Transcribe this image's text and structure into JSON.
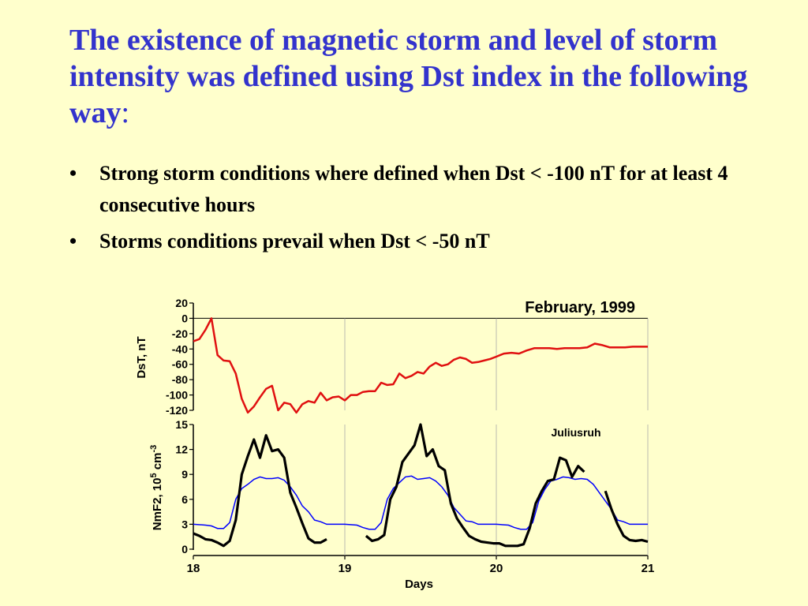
{
  "slide": {
    "title_main": "The existence of magnetic storm and level of storm intensity was defined using Dst index in the following way",
    "title_colon": ":",
    "bullets": [
      "Strong storm conditions where defined when Dst < -100 nT for at least 4 consecutive hours",
      "Storms conditions prevail when Dst < -50 nT"
    ],
    "bullet_glyph": "•"
  },
  "chart_data": [
    {
      "type": "line",
      "title": "February, 1999",
      "ylabel": "DsT, nT",
      "xlim": [
        18,
        21
      ],
      "ylim": [
        -120,
        20
      ],
      "yticks": [
        20,
        0,
        -20,
        -40,
        -60,
        -80,
        -100,
        -120
      ],
      "grid": "vertical lines at day boundaries",
      "color": "#e01010",
      "series": [
        {
          "x": [
            18.0,
            18.04,
            18.08,
            18.12,
            18.16,
            18.2,
            18.24,
            18.28,
            18.32,
            18.36,
            18.4,
            18.44,
            18.48,
            18.52,
            18.56,
            18.6,
            18.64,
            18.68,
            18.72,
            18.76,
            18.8,
            18.84,
            18.88,
            18.92,
            18.96,
            19.0,
            19.04,
            19.08,
            19.12,
            19.16,
            19.2,
            19.24,
            19.28,
            19.32,
            19.36,
            19.4,
            19.44,
            19.48,
            19.52,
            19.56,
            19.6,
            19.64,
            19.68,
            19.72,
            19.76,
            19.8,
            19.84,
            19.88,
            19.92,
            19.96,
            20.0,
            20.05,
            20.1,
            20.15,
            20.2,
            20.25,
            20.3,
            20.35,
            20.4,
            20.45,
            20.5,
            20.55,
            20.6,
            20.65,
            20.7,
            20.75,
            20.8,
            20.85,
            20.9,
            20.95,
            21.0
          ],
          "values": [
            -30,
            -27,
            -15,
            0,
            -48,
            -55,
            -56,
            -72,
            -105,
            -123,
            -115,
            -103,
            -92,
            -88,
            -120,
            -110,
            -112,
            -123,
            -112,
            -108,
            -110,
            -97,
            -107,
            -103,
            -102,
            -107,
            -100,
            -100,
            -96,
            -95,
            -95,
            -84,
            -87,
            -86,
            -72,
            -78,
            -75,
            -70,
            -72,
            -63,
            -58,
            -62,
            -60,
            -54,
            -51,
            -53,
            -58,
            -57,
            -55,
            -53,
            -50,
            -46,
            -45,
            -46,
            -42,
            -39,
            -39,
            -39,
            -40,
            -39,
            -39,
            -39,
            -38,
            -33,
            -35,
            -38,
            -38,
            -38,
            -37,
            -37,
            -37
          ]
        }
      ]
    },
    {
      "type": "line",
      "title": "Juliusruh",
      "xlabel": "Days",
      "ylabel": "NmF2, 10",
      "ylabel_sup1": "5",
      "ylabel_mid": " cm",
      "ylabel_sup2": "-3",
      "xlim": [
        18,
        21
      ],
      "ylim": [
        0,
        15
      ],
      "xticks": [
        18,
        19,
        20,
        21
      ],
      "yticks": [
        15,
        12,
        9,
        6,
        3,
        0
      ],
      "series": [
        {
          "color": "#000000",
          "segments": [
            {
              "x": [
                18.0,
                18.04,
                18.08,
                18.12,
                18.16,
                18.2,
                18.24,
                18.28,
                18.32,
                18.36,
                18.4,
                18.44,
                18.48,
                18.52,
                18.56,
                18.6,
                18.64,
                18.68,
                18.72,
                18.76,
                18.8,
                18.84,
                18.88,
                18.92
              ],
              "values": [
                1.9,
                1.6,
                1.2,
                1.1,
                0.8,
                0.4,
                1.0,
                3.5,
                9.0,
                11.2,
                13.2,
                11.0,
                13.7,
                11.8,
                12.0,
                11.0,
                6.8,
                5.0,
                3.1,
                1.3,
                0.8,
                0.8,
                1.2,
                null
              ]
            },
            {
              "x": [
                19.14,
                19.18,
                19.22,
                19.26,
                19.3,
                19.34,
                19.38,
                19.42,
                19.46,
                19.5,
                19.54,
                19.58,
                19.62,
                19.66,
                19.7,
                19.74,
                19.78,
                19.82,
                19.86,
                19.9,
                19.94,
                19.98,
                20.02,
                20.06,
                20.1,
                20.14,
                20.18,
                20.22,
                20.26,
                20.3,
                20.34,
                20.38,
                20.42,
                20.46,
                20.5,
                20.54,
                20.58,
                20.62
              ],
              "values": [
                1.6,
                1.0,
                1.2,
                1.7,
                6.0,
                7.5,
                10.5,
                11.5,
                12.5,
                15.0,
                11.2,
                12.0,
                10.0,
                9.5,
                5.5,
                3.7,
                2.6,
                1.6,
                1.2,
                0.9,
                0.8,
                0.7,
                0.7,
                0.4,
                0.4,
                0.4,
                0.6,
                2.5,
                5.5,
                7.0,
                8.2,
                8.4,
                11.0,
                10.7,
                8.7,
                10.0,
                9.3,
                null
              ]
            },
            {
              "x": [
                20.72,
                20.76,
                20.8,
                20.84,
                20.88,
                20.92,
                20.96,
                21.0
              ],
              "values": [
                7.0,
                4.8,
                3.0,
                1.6,
                1.1,
                1.0,
                1.1,
                0.9
              ]
            }
          ]
        },
        {
          "color": "#0000ff",
          "x": [
            18.0,
            18.08,
            18.12,
            18.16,
            18.2,
            18.24,
            18.28,
            18.32,
            18.36,
            18.4,
            18.44,
            18.48,
            18.52,
            18.56,
            18.6,
            18.64,
            18.68,
            18.72,
            18.76,
            18.8,
            18.84,
            18.88,
            18.92,
            19.0,
            19.08,
            19.12,
            19.16,
            19.2,
            19.24,
            19.28,
            19.32,
            19.36,
            19.4,
            19.44,
            19.48,
            19.52,
            19.56,
            19.6,
            19.64,
            19.68,
            19.72,
            19.76,
            19.8,
            19.84,
            19.88,
            19.92,
            20.0,
            20.08,
            20.12,
            20.16,
            20.2,
            20.24,
            20.28,
            20.32,
            20.36,
            20.4,
            20.44,
            20.48,
            20.52,
            20.56,
            20.6,
            20.64,
            20.68,
            20.72,
            20.76,
            20.8,
            20.84,
            20.88,
            20.92,
            21.0
          ],
          "values": [
            3.0,
            2.9,
            2.8,
            2.5,
            2.5,
            3.2,
            6.0,
            7.3,
            7.8,
            8.4,
            8.7,
            8.5,
            8.5,
            8.6,
            8.3,
            7.5,
            6.5,
            5.2,
            4.5,
            3.5,
            3.3,
            3.0,
            3.0,
            3.0,
            2.9,
            2.6,
            2.4,
            2.4,
            3.2,
            6.0,
            7.3,
            8.0,
            8.7,
            8.8,
            8.4,
            8.5,
            8.6,
            8.2,
            7.5,
            6.5,
            5.0,
            4.2,
            3.4,
            3.3,
            3.0,
            3.0,
            3.0,
            2.9,
            2.6,
            2.4,
            2.4,
            3.2,
            5.8,
            7.2,
            8.2,
            8.4,
            8.7,
            8.6,
            8.4,
            8.5,
            8.4,
            7.8,
            6.8,
            5.8,
            4.8,
            3.5,
            3.3,
            3.0,
            3.0,
            3.0
          ]
        }
      ]
    }
  ]
}
